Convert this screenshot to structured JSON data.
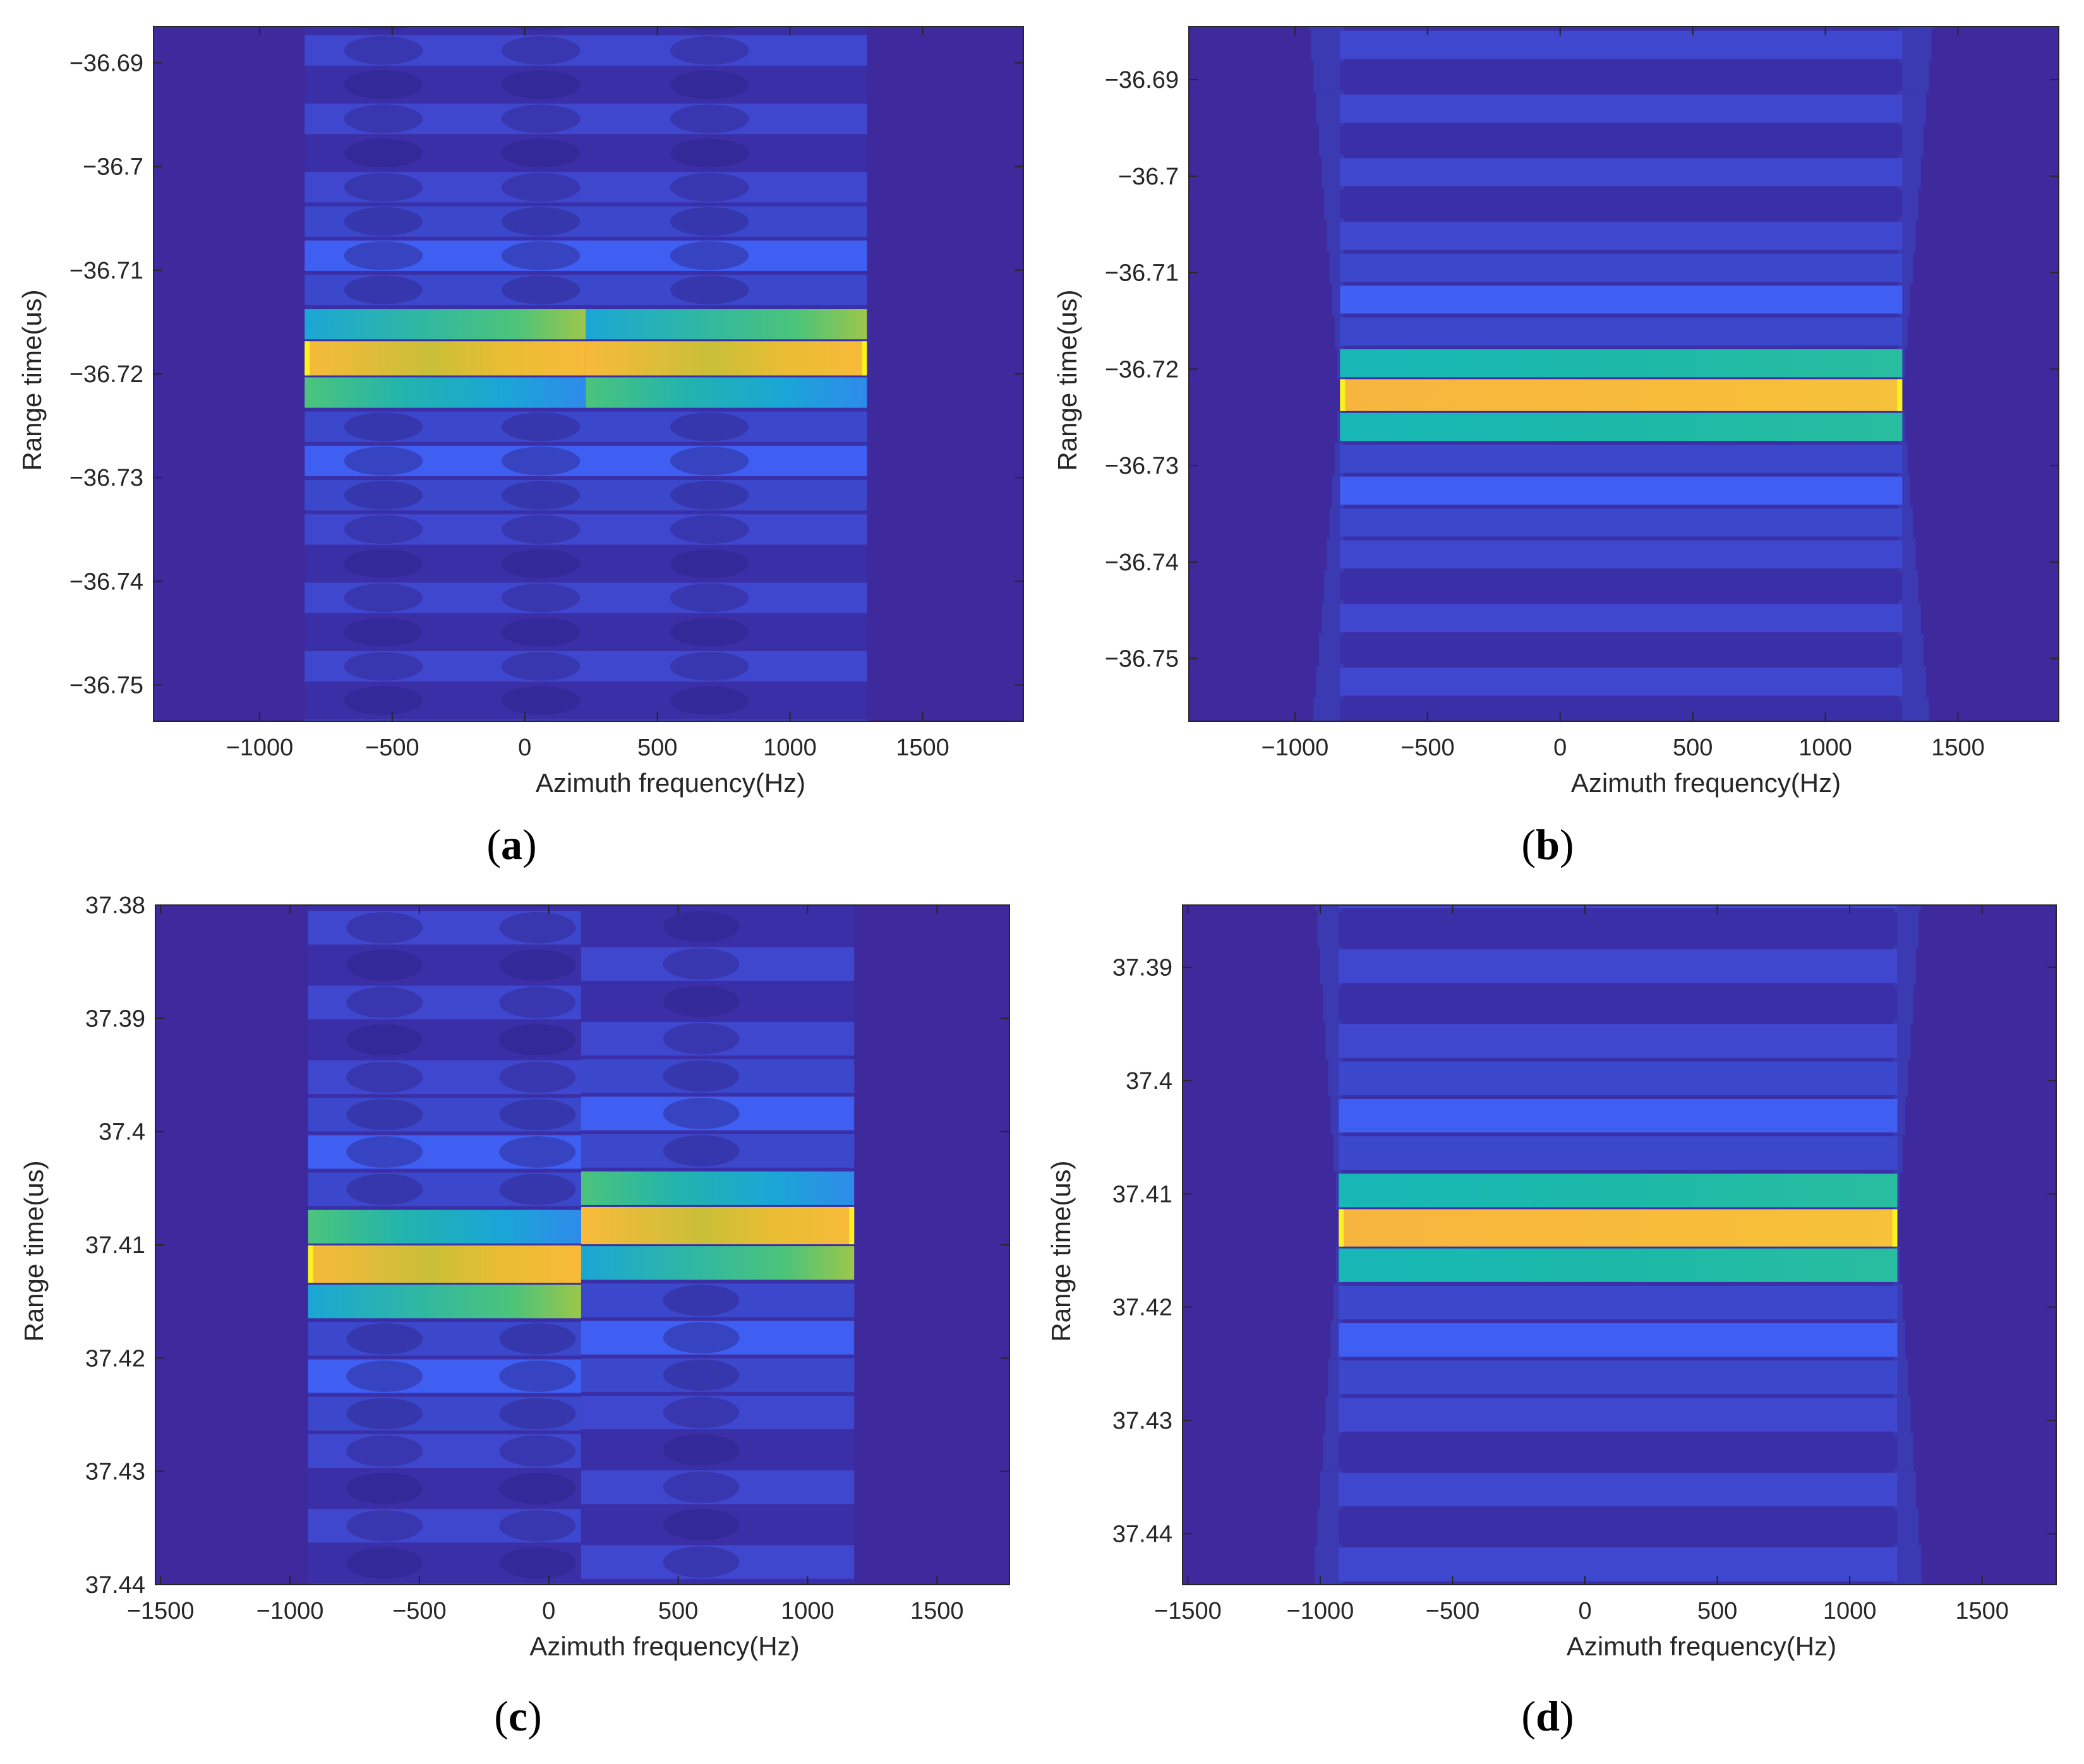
{
  "colors": {
    "background": "#3e2a9c",
    "level_dark": "#3a2fa6",
    "level_mid": "#4047cf",
    "level_light": "#3f5ff2",
    "level_cyan": "#1aa6d6",
    "level_green": "#4cc47a",
    "level_yellow": "#f8ba3a",
    "edge_yellow": "#f9f21e",
    "axis": "#262626"
  },
  "chart_data": [
    {
      "panel": "a",
      "type": "heatmap",
      "title": "",
      "xlabel": "Azimuth frequency(Hz)",
      "ylabel": "Range time(us)",
      "xlim": [
        -1400,
        1880
      ],
      "ylim": [
        -36.6865,
        -36.7535
      ],
      "y_reversed": true,
      "xticks": [
        -1000,
        -500,
        0,
        500,
        1000,
        1500
      ],
      "xtick_labels": [
        "−1000",
        "−500",
        "0",
        "500",
        "1000",
        "1500"
      ],
      "yticks": [
        -36.75,
        -36.74,
        -36.73,
        -36.72,
        -36.71,
        -36.7,
        -36.69
      ],
      "ytick_labels": [
        "−36.75",
        "−36.74",
        "−36.73",
        "−36.72",
        "−36.71",
        "−36.7",
        "−36.69"
      ],
      "signal_band_hz": [
        -830,
        1290
      ],
      "band_shape": "tilted",
      "peak_range_us": [
        -36.7185,
        -36.7185
      ],
      "row_step_us": 0.0033,
      "rows_each_side": 11,
      "sidelobe_fringes": true,
      "label": "(a)",
      "label_letter": "a"
    },
    {
      "panel": "b",
      "type": "heatmap",
      "title": "",
      "xlabel": "Azimuth frequency(Hz)",
      "ylabel": "Range time(us)",
      "xlim": [
        -1400,
        1880
      ],
      "ylim": [
        -36.6845,
        -36.7565
      ],
      "y_reversed": true,
      "xticks": [
        -1000,
        -500,
        0,
        500,
        1000,
        1500
      ],
      "xtick_labels": [
        "−1000",
        "−500",
        "0",
        "500",
        "1000",
        "1500"
      ],
      "yticks": [
        -36.75,
        -36.74,
        -36.73,
        -36.72,
        -36.71,
        -36.7,
        -36.69
      ],
      "ytick_labels": [
        "−36.75",
        "−36.74",
        "−36.73",
        "−36.72",
        "−36.71",
        "−36.7",
        "−36.69"
      ],
      "signal_band_hz": [
        -830,
        1290
      ],
      "band_shape": "flat",
      "peak_range_us": [
        -36.7227,
        -36.7227
      ],
      "row_step_us": 0.0033,
      "rows_each_side": 12,
      "sidelobe_fringes": false,
      "label": "(b)",
      "label_letter": "b"
    },
    {
      "panel": "c",
      "type": "heatmap",
      "title": "",
      "xlabel": "Azimuth frequency(Hz)",
      "ylabel": "Range time(us)",
      "xlim": [
        -1520,
        1780
      ],
      "ylim": [
        37.38,
        37.44
      ],
      "y_reversed": false,
      "xticks": [
        -1500,
        -1000,
        -500,
        0,
        500,
        1000,
        1500
      ],
      "xtick_labels": [
        "−1500",
        "−1000",
        "−500",
        "0",
        "500",
        "1000",
        "1500"
      ],
      "yticks": [
        37.38,
        37.39,
        37.4,
        37.41,
        37.42,
        37.43,
        37.44
      ],
      "ytick_labels": [
        "37.38",
        "37.39",
        "37.4",
        "37.41",
        "37.42",
        "37.43",
        "37.44"
      ],
      "signal_band_hz": [
        -930,
        1180
      ],
      "band_shape": "tilted",
      "peak_range_us": [
        37.4117,
        37.4083
      ],
      "row_step_us": 0.0033,
      "rows_each_side": 11,
      "sidelobe_fringes": true,
      "label": "(c)",
      "label_letter": "c"
    },
    {
      "panel": "d",
      "type": "heatmap",
      "title": "",
      "xlabel": "Azimuth frequency(Hz)",
      "ylabel": "Range time(us)",
      "xlim": [
        -1520,
        1780
      ],
      "ylim": [
        37.3845,
        37.4445
      ],
      "y_reversed": false,
      "xticks": [
        -1500,
        -1000,
        -500,
        0,
        500,
        1000,
        1500
      ],
      "xtick_labels": [
        "−1500",
        "−1000",
        "−500",
        "0",
        "500",
        "1000",
        "1500"
      ],
      "yticks": [
        37.39,
        37.4,
        37.41,
        37.42,
        37.43,
        37.44
      ],
      "ytick_labels": [
        "37.39",
        "37.4",
        "37.41",
        "37.42",
        "37.43",
        "37.44"
      ],
      "signal_band_hz": [
        -930,
        1180
      ],
      "band_shape": "flat",
      "peak_range_us": [
        37.413,
        37.413
      ],
      "row_step_us": 0.0033,
      "rows_each_side": 12,
      "sidelobe_fringes": false,
      "label": "(d)",
      "label_letter": "d"
    }
  ]
}
